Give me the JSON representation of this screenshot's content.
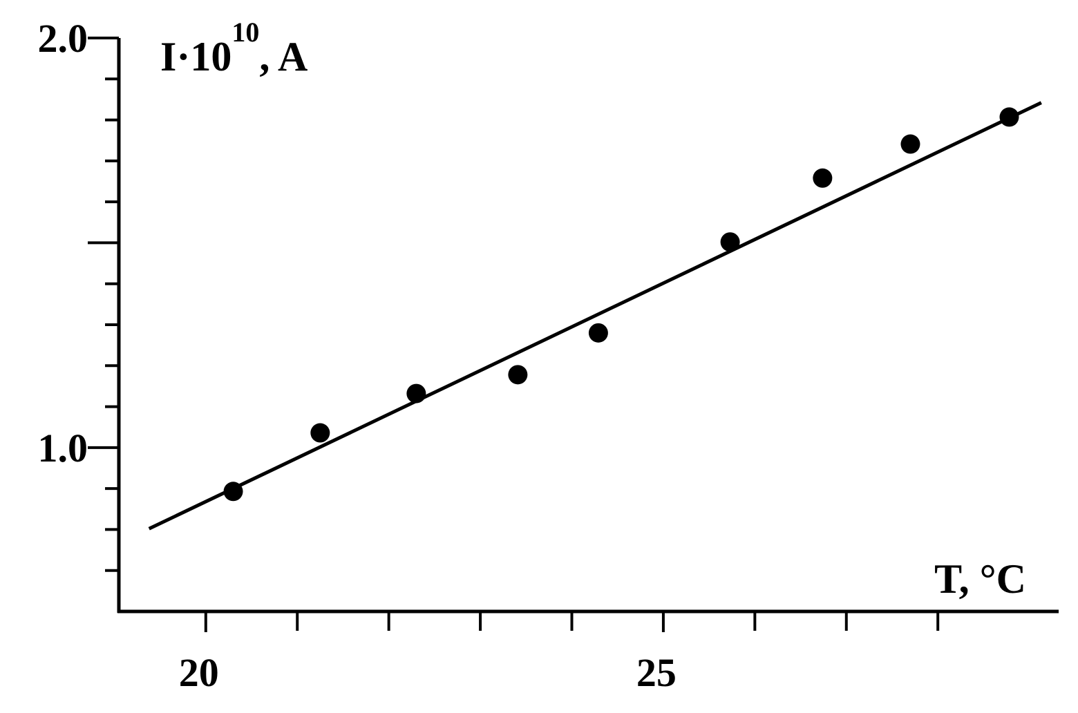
{
  "chart_data": {
    "type": "scatter",
    "y_label": {
      "base": "I·10",
      "exponent": "10",
      "unit": ", A"
    },
    "x_label": "T, °C",
    "series": [
      {
        "name": null,
        "color": "#000000",
        "x": [
          20.3,
          21.25,
          22.3,
          23.41,
          24.29,
          25.73,
          26.74,
          27.7,
          28.78
        ],
        "values": [
          0.893,
          1.036,
          1.132,
          1.178,
          1.28,
          1.502,
          1.658,
          1.741,
          1.807
        ]
      }
    ],
    "fit": {
      "color": "#000000",
      "x": [
        19.38,
        29.13
      ],
      "values": [
        0.802,
        1.842
      ]
    },
    "xlim": [
      19.05,
      29.32
    ],
    "ylim": [
      0.6,
      2.0
    ],
    "xticks": [
      20,
      25
    ],
    "xminorticks": [
      21,
      22,
      23,
      24,
      26,
      27,
      28
    ],
    "yticks": [
      {
        "value": 1.0,
        "label": "1.0"
      },
      {
        "value": 2.0,
        "label": "2.0"
      }
    ],
    "yminorticks": [
      0.7,
      0.8,
      0.9,
      1.1,
      1.2,
      1.3,
      1.4,
      1.5,
      1.6,
      1.7,
      1.8,
      1.9
    ]
  }
}
